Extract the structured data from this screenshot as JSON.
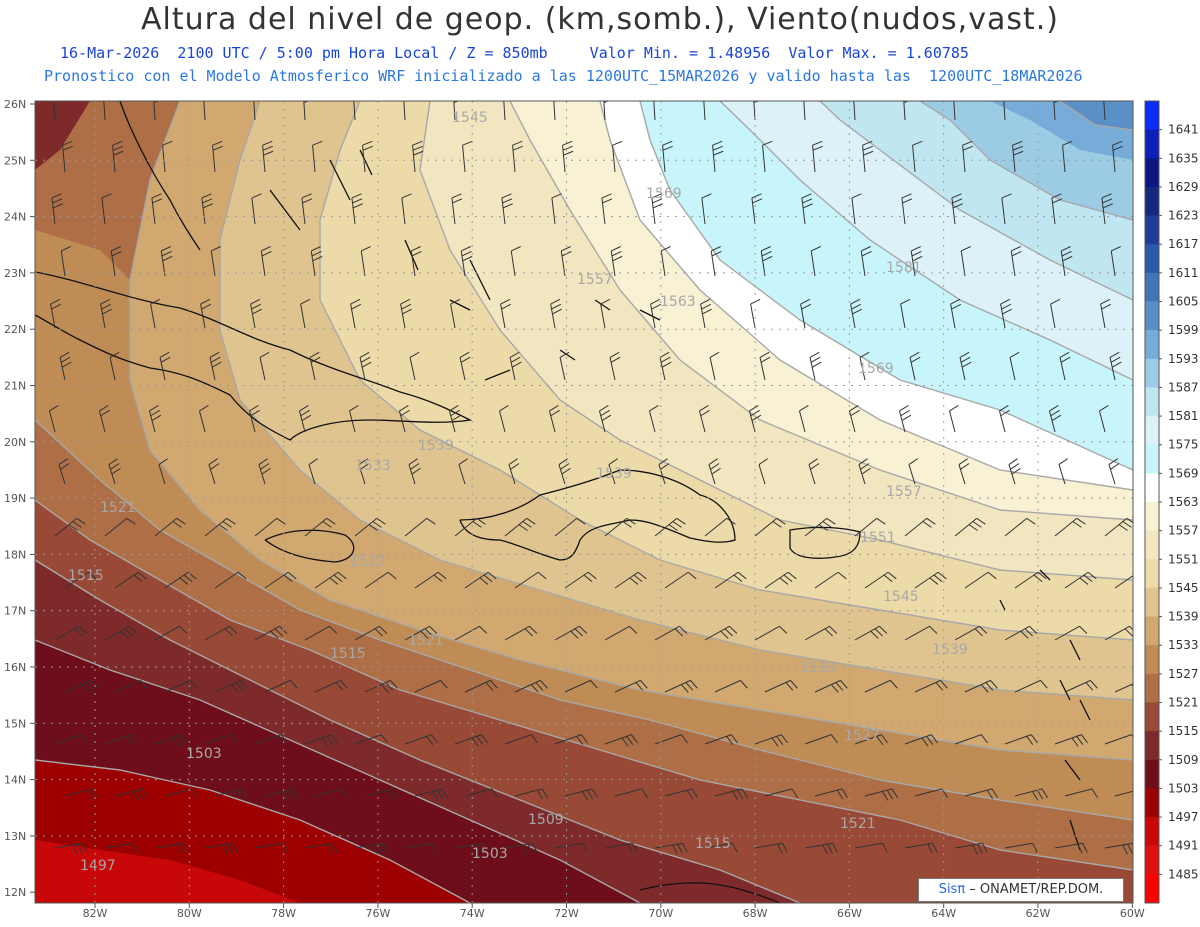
{
  "header": {
    "title": "Altura del nivel de geop. (km,somb.), Viento(nudos,vast.)",
    "datetime": "16-Mar-2026  2100 UTC / 5:00 pm Hora Local / Z = 850mb",
    "min_max": "Valor Min. = 1.48956  Valor Max. = 1.60785",
    "forecast_info": "Pronostico con el Modelo Atmosferico WRF inicializado a las 1200UTC_15MAR2026 y valido hasta las  1200UTC_18MAR2026"
  },
  "axes": {
    "lat_labels": [
      "26N",
      "25N",
      "24N",
      "23N",
      "22N",
      "21N",
      "20N",
      "19N",
      "18N",
      "17N",
      "16N",
      "15N",
      "14N",
      "13N",
      "12N"
    ],
    "lon_labels": [
      "82W",
      "80W",
      "78W",
      "76W",
      "74W",
      "72W",
      "70W",
      "68W",
      "66W",
      "64W",
      "62W",
      "60W"
    ]
  },
  "colorbar": {
    "labels": [
      "1641",
      "1635",
      "1629",
      "1623",
      "1617",
      "1611",
      "1605",
      "1599",
      "1593",
      "1587",
      "1581",
      "1575",
      "1569",
      "1563",
      "1557",
      "1551",
      "1545",
      "1539",
      "1533",
      "1527",
      "1521",
      "1515",
      "1509",
      "1503",
      "1497",
      "1491",
      "1485"
    ],
    "colors": [
      "#0a2cf5",
      "#0c1fb8",
      "#0d1680",
      "#142880",
      "#1f3d98",
      "#2d5aa8",
      "#4275b8",
      "#5b8fc8",
      "#78acd8",
      "#9ccbe4",
      "#c0e6f2",
      "#dcf2f8",
      "#c8f4fc",
      "#ffffff",
      "#f8f1d4",
      "#f2e6c0",
      "#ecdaa8",
      "#e0c490",
      "#d0a870",
      "#c08c56",
      "#ae6e46",
      "#984a36",
      "#7e2a2a",
      "#6e0e1a",
      "#9c0000",
      "#c80808",
      "#e01010",
      "#ff0000"
    ]
  },
  "contour_labels": [
    {
      "text": "1545"
    },
    {
      "text": "1569"
    },
    {
      "text": "1557"
    },
    {
      "text": "1563"
    },
    {
      "text": "1581"
    },
    {
      "text": "1569"
    },
    {
      "text": "1539"
    },
    {
      "text": "1533"
    },
    {
      "text": "1539"
    },
    {
      "text": "1557"
    },
    {
      "text": "1551"
    },
    {
      "text": "1545"
    },
    {
      "text": "1521"
    },
    {
      "text": "1515"
    },
    {
      "text": "1527"
    },
    {
      "text": "1521"
    },
    {
      "text": "1515"
    },
    {
      "text": "1533"
    },
    {
      "text": "1539"
    },
    {
      "text": "1527"
    },
    {
      "text": "1503"
    },
    {
      "text": "1509"
    },
    {
      "text": "1503"
    },
    {
      "text": "1515"
    },
    {
      "text": "1521"
    },
    {
      "text": "1497"
    }
  ],
  "credit": {
    "sis": "Sisπ",
    "org": " – ONAMET/REP.DOM."
  }
}
